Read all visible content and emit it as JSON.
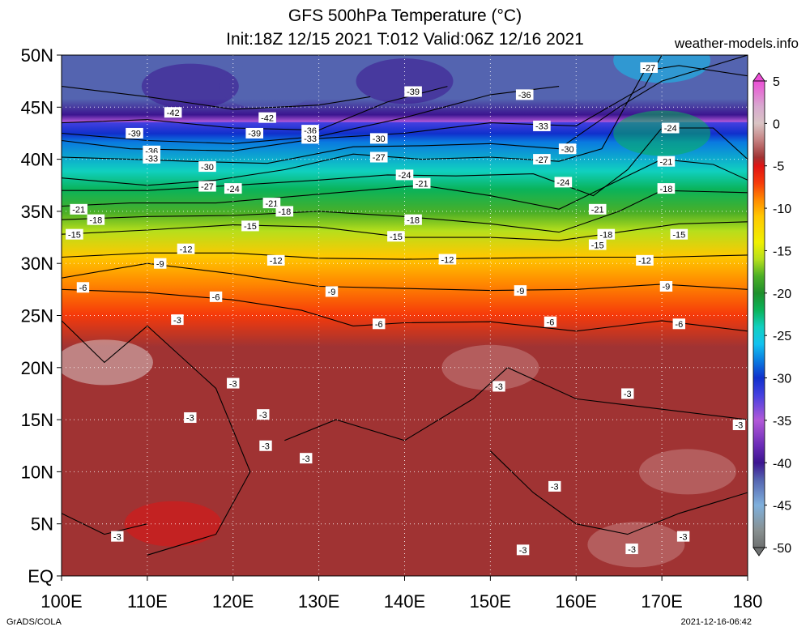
{
  "title_line1": "GFS 500hPa Temperature (°C)",
  "title_line2": "Init:18Z 12/15 2021 T:012 Valid:06Z 12/16 2021",
  "site_label": "weather-models.info",
  "credit": "GrADS/COLA",
  "timestamp": "2021-12-16-06:42",
  "chart_data": {
    "type": "heatmap",
    "x_range": [
      100,
      180
    ],
    "y_range": [
      0,
      50
    ],
    "x_ticks": [
      {
        "v": 100,
        "label": "100E"
      },
      {
        "v": 110,
        "label": "110E"
      },
      {
        "v": 120,
        "label": "120E"
      },
      {
        "v": 130,
        "label": "130E"
      },
      {
        "v": 140,
        "label": "140E"
      },
      {
        "v": 150,
        "label": "150E"
      },
      {
        "v": 160,
        "label": "160E"
      },
      {
        "v": 170,
        "label": "170E"
      },
      {
        "v": 180,
        "label": "180"
      }
    ],
    "y_ticks": [
      {
        "v": 0,
        "label": "EQ"
      },
      {
        "v": 5,
        "label": "5N"
      },
      {
        "v": 10,
        "label": "10N"
      },
      {
        "v": 15,
        "label": "15N"
      },
      {
        "v": 20,
        "label": "20N"
      },
      {
        "v": 25,
        "label": "25N"
      },
      {
        "v": 30,
        "label": "30N"
      },
      {
        "v": 35,
        "label": "35N"
      },
      {
        "v": 40,
        "label": "40N"
      },
      {
        "v": 45,
        "label": "45N"
      },
      {
        "v": 50,
        "label": "50N"
      }
    ],
    "grid": true,
    "legend_placement": "right",
    "colorbar": {
      "range": [
        -50,
        5
      ],
      "ticks": [
        5,
        0,
        -5,
        -10,
        -15,
        -20,
        -25,
        -30,
        -35,
        -40,
        -45,
        -50
      ],
      "stops": [
        {
          "v": 5,
          "c": "#ec4fd6"
        },
        {
          "v": 2,
          "c": "#d8a9cf"
        },
        {
          "v": 0,
          "c": "#d9c4c4"
        },
        {
          "v": -2,
          "c": "#c48080"
        },
        {
          "v": -4,
          "c": "#a03333"
        },
        {
          "v": -5,
          "c": "#e01414"
        },
        {
          "v": -7,
          "c": "#f63a0a"
        },
        {
          "v": -9,
          "c": "#ff8a00"
        },
        {
          "v": -11,
          "c": "#ffc800"
        },
        {
          "v": -14,
          "c": "#f0f000"
        },
        {
          "v": -16,
          "c": "#b6df1c"
        },
        {
          "v": -18,
          "c": "#4caf26"
        },
        {
          "v": -20,
          "c": "#1f8f2c"
        },
        {
          "v": -22,
          "c": "#0ab35a"
        },
        {
          "v": -24,
          "c": "#10d0c0"
        },
        {
          "v": -26,
          "c": "#12c2ef"
        },
        {
          "v": -28,
          "c": "#0a7ae0"
        },
        {
          "v": -30,
          "c": "#1030cc"
        },
        {
          "v": -32,
          "c": "#4440e0"
        },
        {
          "v": -35,
          "c": "#b259d8"
        },
        {
          "v": -38,
          "c": "#6a2bb6"
        },
        {
          "v": -40,
          "c": "#3c1590"
        },
        {
          "v": -42,
          "c": "#5464b0"
        },
        {
          "v": -45,
          "c": "#7fb0dc"
        },
        {
          "v": -48,
          "c": "#889090"
        },
        {
          "v": -50,
          "c": "#6e7070"
        }
      ]
    },
    "isotherms": [
      {
        "value": -42,
        "points": [
          [
            100,
            47
          ],
          [
            110,
            46
          ],
          [
            120,
            44.8
          ],
          [
            130,
            45.2
          ],
          [
            136,
            46
          ]
        ]
      },
      {
        "value": -39,
        "points": [
          [
            100,
            43.5
          ],
          [
            110,
            43.8
          ],
          [
            120,
            43
          ],
          [
            130,
            42.8
          ],
          [
            138,
            45.5
          ],
          [
            145,
            47
          ]
        ]
      },
      {
        "value": -36,
        "points": [
          [
            100,
            42.5
          ],
          [
            110,
            41.8
          ],
          [
            120,
            41.5
          ],
          [
            130,
            42.2
          ],
          [
            140,
            44
          ],
          [
            150,
            46.2
          ],
          [
            158,
            47
          ]
        ]
      },
      {
        "value": -33,
        "points": [
          [
            100,
            41.8
          ],
          [
            108,
            41
          ],
          [
            120,
            40.8
          ],
          [
            130,
            42
          ],
          [
            140,
            42.5
          ],
          [
            150,
            43.5
          ],
          [
            160,
            43.2
          ],
          [
            168,
            47
          ],
          [
            170,
            50
          ]
        ]
      },
      {
        "value": -30,
        "points": [
          [
            100,
            40.2
          ],
          [
            108,
            40
          ],
          [
            115,
            39.8
          ],
          [
            124,
            39.6
          ],
          [
            134,
            41.2
          ],
          [
            142,
            41.3
          ],
          [
            150,
            41.5
          ],
          [
            158,
            41
          ],
          [
            165,
            45
          ],
          [
            170,
            47.5
          ],
          [
            180,
            50
          ]
        ]
      },
      {
        "value": -27,
        "points": [
          [
            100,
            38.2
          ],
          [
            110,
            37.5
          ],
          [
            118,
            38
          ],
          [
            126,
            39
          ],
          [
            134,
            40.5
          ],
          [
            142,
            40
          ],
          [
            150,
            40.2
          ],
          [
            158,
            39.8
          ],
          [
            163,
            41
          ],
          [
            168,
            48.5
          ],
          [
            172,
            49
          ],
          [
            180,
            48
          ]
        ]
      },
      {
        "value": -24,
        "points": [
          [
            100,
            37
          ],
          [
            110,
            37
          ],
          [
            120,
            37.5
          ],
          [
            130,
            38
          ],
          [
            138,
            38.5
          ],
          [
            146,
            38.4
          ],
          [
            155,
            38.6
          ],
          [
            162,
            36.5
          ],
          [
            166,
            39
          ],
          [
            170,
            43
          ],
          [
            176,
            43
          ],
          [
            180,
            40
          ]
        ]
      },
      {
        "value": -21,
        "points": [
          [
            100,
            35.5
          ],
          [
            108,
            35.8
          ],
          [
            118,
            35.8
          ],
          [
            128,
            36.5
          ],
          [
            135,
            37
          ],
          [
            142,
            37.5
          ],
          [
            150,
            36.5
          ],
          [
            158,
            35.2
          ],
          [
            165,
            38
          ],
          [
            170,
            40
          ],
          [
            176,
            39.5
          ],
          [
            180,
            38
          ]
        ]
      },
      {
        "value": -18,
        "points": [
          [
            100,
            34.2
          ],
          [
            110,
            34.5
          ],
          [
            120,
            34.6
          ],
          [
            130,
            35
          ],
          [
            140,
            34.5
          ],
          [
            150,
            33.8
          ],
          [
            158,
            33
          ],
          [
            165,
            35
          ],
          [
            170,
            37
          ],
          [
            180,
            36.8
          ]
        ]
      },
      {
        "value": -15,
        "points": [
          [
            100,
            32.8
          ],
          [
            110,
            33.2
          ],
          [
            120,
            33.7
          ],
          [
            130,
            33.5
          ],
          [
            140,
            32.5
          ],
          [
            150,
            32.5
          ],
          [
            158,
            32.2
          ],
          [
            165,
            33
          ],
          [
            172,
            33.8
          ],
          [
            180,
            34
          ]
        ]
      },
      {
        "value": -12,
        "points": [
          [
            100,
            30.6
          ],
          [
            110,
            31
          ],
          [
            120,
            31
          ],
          [
            130,
            30.5
          ],
          [
            140,
            30.4
          ],
          [
            150,
            30.5
          ],
          [
            160,
            30.6
          ],
          [
            170,
            30.6
          ],
          [
            180,
            30.8
          ]
        ]
      },
      {
        "value": -9,
        "points": [
          [
            100,
            28.6
          ],
          [
            110,
            30
          ],
          [
            120,
            29
          ],
          [
            130,
            27.8
          ],
          [
            140,
            27.6
          ],
          [
            150,
            27.4
          ],
          [
            160,
            27.5
          ],
          [
            170,
            28
          ],
          [
            180,
            27.5
          ]
        ]
      },
      {
        "value": -6,
        "points": [
          [
            100,
            27.5
          ],
          [
            110,
            27.2
          ],
          [
            120,
            26.5
          ],
          [
            128,
            25.5
          ],
          [
            134,
            24
          ],
          [
            140,
            24.3
          ],
          [
            150,
            24.4
          ],
          [
            160,
            23.5
          ],
          [
            170,
            24.5
          ],
          [
            180,
            23.5
          ]
        ]
      },
      {
        "value": -3,
        "points": [
          [
            100,
            24.5
          ],
          [
            105,
            20.5
          ],
          [
            110,
            24
          ],
          [
            118,
            18
          ],
          [
            122,
            10
          ],
          [
            118,
            4
          ],
          [
            110,
            2
          ]
        ]
      },
      {
        "value": -3,
        "points": [
          [
            100,
            6
          ],
          [
            105,
            4
          ],
          [
            110,
            5
          ]
        ]
      },
      {
        "value": -3,
        "points": [
          [
            126,
            13
          ],
          [
            132,
            15
          ],
          [
            140,
            13
          ],
          [
            148,
            17
          ],
          [
            152,
            20
          ],
          [
            160,
            17
          ],
          [
            170,
            16
          ],
          [
            180,
            15
          ]
        ]
      },
      {
        "value": -3,
        "points": [
          [
            150,
            12
          ],
          [
            155,
            8
          ],
          [
            160,
            5
          ],
          [
            166,
            4
          ],
          [
            172,
            6
          ],
          [
            180,
            8
          ]
        ]
      }
    ],
    "contour_labels": [
      {
        "lon": 113,
        "lat": 44.5,
        "text": "-42"
      },
      {
        "lon": 124,
        "lat": 44,
        "text": "-42"
      },
      {
        "lon": 108.5,
        "lat": 42.5,
        "text": "-39"
      },
      {
        "lon": 122.5,
        "lat": 42.5,
        "text": "-39"
      },
      {
        "lon": 141,
        "lat": 46.5,
        "text": "-39"
      },
      {
        "lon": 154,
        "lat": 46.2,
        "text": "-36"
      },
      {
        "lon": 129,
        "lat": 42.8,
        "text": "-36"
      },
      {
        "lon": 129,
        "lat": 42.0,
        "text": "-33"
      },
      {
        "lon": 110.5,
        "lat": 40.8,
        "text": "-36"
      },
      {
        "lon": 110.5,
        "lat": 40.1,
        "text": "-33"
      },
      {
        "lon": 137,
        "lat": 42,
        "text": "-30"
      },
      {
        "lon": 156,
        "lat": 43.2,
        "text": "-33"
      },
      {
        "lon": 117,
        "lat": 39.3,
        "text": "-30"
      },
      {
        "lon": 137,
        "lat": 40.2,
        "text": "-27"
      },
      {
        "lon": 159,
        "lat": 41.0,
        "text": "-30"
      },
      {
        "lon": 168.5,
        "lat": 48.8,
        "text": "-27"
      },
      {
        "lon": 117,
        "lat": 37.4,
        "text": "-27"
      },
      {
        "lon": 120,
        "lat": 37.2,
        "text": "-24"
      },
      {
        "lon": 140,
        "lat": 38.5,
        "text": "-24"
      },
      {
        "lon": 156,
        "lat": 40.0,
        "text": "-27"
      },
      {
        "lon": 142,
        "lat": 37.7,
        "text": "-21"
      },
      {
        "lon": 158.5,
        "lat": 37.8,
        "text": "-24"
      },
      {
        "lon": 171,
        "lat": 43.0,
        "text": "-24"
      },
      {
        "lon": 170.5,
        "lat": 39.8,
        "text": "-21"
      },
      {
        "lon": 102,
        "lat": 35.2,
        "text": "-21"
      },
      {
        "lon": 124.5,
        "lat": 35.8,
        "text": "-21"
      },
      {
        "lon": 126,
        "lat": 35.0,
        "text": "-18"
      },
      {
        "lon": 162.5,
        "lat": 35.2,
        "text": "-21"
      },
      {
        "lon": 170.5,
        "lat": 37.2,
        "text": "-18"
      },
      {
        "lon": 104,
        "lat": 34.2,
        "text": "-18"
      },
      {
        "lon": 122,
        "lat": 33.6,
        "text": "-15"
      },
      {
        "lon": 141,
        "lat": 34.2,
        "text": "-18"
      },
      {
        "lon": 163.5,
        "lat": 32.8,
        "text": "-18"
      },
      {
        "lon": 101.5,
        "lat": 32.8,
        "text": "-15"
      },
      {
        "lon": 139,
        "lat": 32.6,
        "text": "-15"
      },
      {
        "lon": 162.5,
        "lat": 31.8,
        "text": "-15"
      },
      {
        "lon": 172,
        "lat": 32.8,
        "text": "-15"
      },
      {
        "lon": 114.5,
        "lat": 31.4,
        "text": "-12"
      },
      {
        "lon": 125,
        "lat": 30.3,
        "text": "-12"
      },
      {
        "lon": 145,
        "lat": 30.4,
        "text": "-12"
      },
      {
        "lon": 168,
        "lat": 30.3,
        "text": "-12"
      },
      {
        "lon": 111.5,
        "lat": 30.0,
        "text": "-9"
      },
      {
        "lon": 102.5,
        "lat": 27.7,
        "text": "-6"
      },
      {
        "lon": 118,
        "lat": 26.8,
        "text": "-6"
      },
      {
        "lon": 131.5,
        "lat": 27.3,
        "text": "-9"
      },
      {
        "lon": 153.5,
        "lat": 27.4,
        "text": "-9"
      },
      {
        "lon": 170.5,
        "lat": 27.8,
        "text": "-9"
      },
      {
        "lon": 113.5,
        "lat": 24.6,
        "text": "-3"
      },
      {
        "lon": 137,
        "lat": 24.2,
        "text": "-6"
      },
      {
        "lon": 157,
        "lat": 24.4,
        "text": "-6"
      },
      {
        "lon": 172,
        "lat": 24.2,
        "text": "-6"
      },
      {
        "lon": 120,
        "lat": 18.5,
        "text": "-3"
      },
      {
        "lon": 115,
        "lat": 15.2,
        "text": "-3"
      },
      {
        "lon": 123.5,
        "lat": 15.5,
        "text": "-3"
      },
      {
        "lon": 123.8,
        "lat": 12.5,
        "text": "-3"
      },
      {
        "lon": 128.5,
        "lat": 11.3,
        "text": "-3"
      },
      {
        "lon": 151,
        "lat": 18.2,
        "text": "-3"
      },
      {
        "lon": 166,
        "lat": 17.5,
        "text": "-3"
      },
      {
        "lon": 179,
        "lat": 14.5,
        "text": "-3"
      },
      {
        "lon": 157.5,
        "lat": 8.6,
        "text": "-3"
      },
      {
        "lon": 106.5,
        "lat": 3.8,
        "text": "-3"
      },
      {
        "lon": 153.8,
        "lat": 2.5,
        "text": "-3"
      },
      {
        "lon": 166.5,
        "lat": 2.6,
        "text": "-3"
      },
      {
        "lon": 172.5,
        "lat": 3.8,
        "text": "-3"
      }
    ],
    "temperature_centers": [
      {
        "lon": 124,
        "lat": 47,
        "value": -42
      },
      {
        "lon": 115,
        "lat": 47,
        "value": -40
      },
      {
        "lon": 140,
        "lat": 47.5,
        "value": -40
      },
      {
        "lon": 170,
        "lat": 49.5,
        "value": -26
      },
      {
        "lon": 170,
        "lat": 42.5,
        "value": -22
      },
      {
        "lon": 105,
        "lat": 20.5,
        "value": 0
      },
      {
        "lon": 173,
        "lat": 10,
        "value": -1
      },
      {
        "lon": 167,
        "lat": 3,
        "value": -1.5
      },
      {
        "lon": 150,
        "lat": 20,
        "value": -2.5
      },
      {
        "lon": 113,
        "lat": 5,
        "value": -4.5
      }
    ]
  }
}
